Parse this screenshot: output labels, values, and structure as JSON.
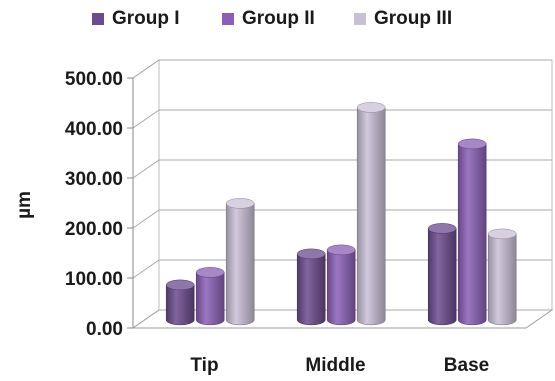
{
  "chart_data": {
    "type": "bar",
    "title": "",
    "xlabel": "",
    "ylabel": "µm",
    "categories": [
      "Tip",
      "Middle",
      "Base"
    ],
    "ylim": [
      0,
      500
    ],
    "yticks": [
      "0.00",
      "100.00",
      "200.00",
      "300.00",
      "400.00",
      "500.00"
    ],
    "grid": true,
    "legend_position": "top",
    "series": [
      {
        "name": "Group I",
        "values": [
          70,
          132,
          183
        ],
        "color": "#6b4a8e"
      },
      {
        "name": "Group II",
        "values": [
          95,
          140,
          352
        ],
        "color": "#8a5fb5"
      },
      {
        "name": "Group III",
        "values": [
          233,
          425,
          172
        ],
        "color": "#c9c0d6"
      }
    ]
  }
}
